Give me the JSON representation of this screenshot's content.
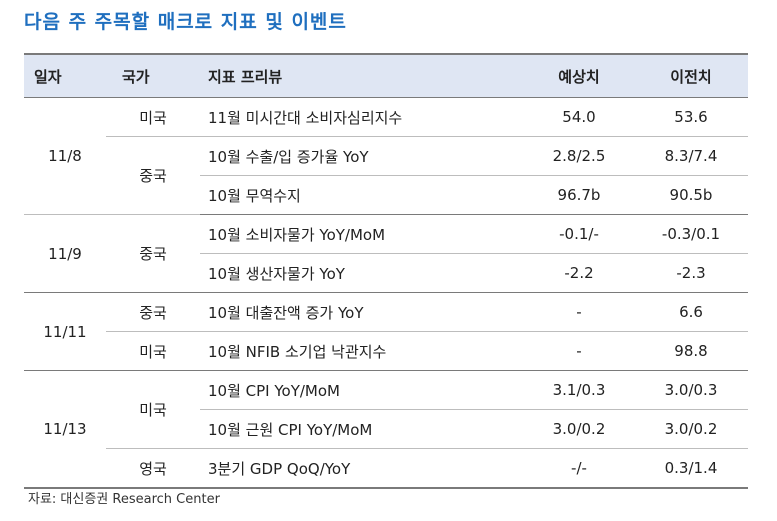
{
  "title": "다음 주 주목할 매크로 지표 및 이벤트",
  "table": {
    "headers": {
      "date": "일자",
      "country": "국가",
      "indicator": "지표 프리뷰",
      "forecast": "예상치",
      "previous": "이전치"
    },
    "groups": [
      {
        "date": "11/8",
        "countries": [
          {
            "name": "미국",
            "rows": [
              {
                "indicator": "11월 미시간대 소비자심리지수",
                "forecast": "54.0",
                "previous": "53.6"
              }
            ]
          },
          {
            "name": "중국",
            "rows": [
              {
                "indicator": "10월 수출/입 증가율 YoY",
                "forecast": "2.8/2.5",
                "previous": "8.3/7.4"
              },
              {
                "indicator": "10월 무역수지",
                "forecast": "96.7b",
                "previous": "90.5b"
              }
            ]
          }
        ]
      },
      {
        "date": "11/9",
        "countries": [
          {
            "name": "중국",
            "rows": [
              {
                "indicator": "10월 소비자물가 YoY/MoM",
                "forecast": "-0.1/-",
                "previous": "-0.3/0.1"
              },
              {
                "indicator": "10월 생산자물가 YoY",
                "forecast": "-2.2",
                "previous": "-2.3"
              }
            ]
          }
        ]
      },
      {
        "date": "11/11",
        "countries": [
          {
            "name": "중국",
            "rows": [
              {
                "indicator": "10월 대출잔액 증가 YoY",
                "forecast": "-",
                "previous": "6.6"
              }
            ]
          },
          {
            "name": "미국",
            "rows": [
              {
                "indicator": "10월 NFIB 소기업 낙관지수",
                "forecast": "-",
                "previous": "98.8"
              }
            ]
          }
        ]
      },
      {
        "date": "11/13",
        "countries": [
          {
            "name": "미국",
            "rows": [
              {
                "indicator": "10월 CPI YoY/MoM",
                "forecast": "3.1/0.3",
                "previous": "3.0/0.3"
              },
              {
                "indicator": "10월 근원 CPI YoY/MoM",
                "forecast": "3.0/0.2",
                "previous": "3.0/0.2"
              }
            ]
          },
          {
            "name": "영국",
            "rows": [
              {
                "indicator": "3분기 GDP QoQ/YoY",
                "forecast": "-/-",
                "previous": "0.3/1.4"
              }
            ]
          }
        ]
      }
    ]
  },
  "source": "자료: 대신증권 Research Center"
}
